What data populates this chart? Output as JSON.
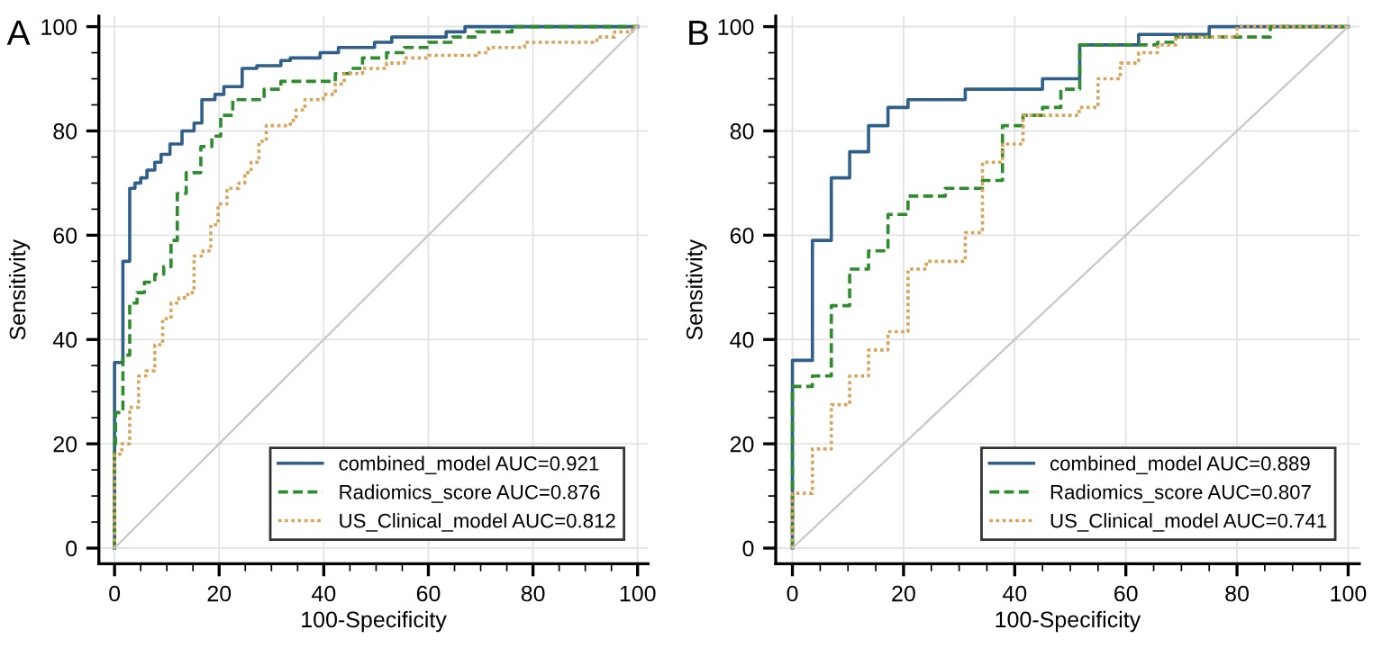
{
  "chart_data": [
    {
      "type": "step",
      "xlabel": "100-Specificity",
      "ylabel": "Sensitivity",
      "annotations": [
        "A"
      ],
      "xlim": [
        -3,
        102
      ],
      "ylim": [
        -3,
        102
      ],
      "xticks": [
        0,
        20,
        40,
        60,
        80,
        100
      ],
      "yticks": [
        0,
        20,
        40,
        60,
        80,
        100
      ],
      "grid": true,
      "legend": "bottom right",
      "series": [
        {
          "name": "combined_model AUC=0.921",
          "color": "#2f5f8a",
          "line_style": "solid",
          "x": [
            0,
            0,
            0,
            1.6,
            1.6,
            2.9,
            3.9,
            5,
            6.2,
            7.7,
            8.9,
            10.6,
            12.9,
            15.2,
            16.7,
            19.2,
            20.9,
            24.4,
            27.2,
            31.8,
            33.6,
            39.3,
            42.8,
            49.7,
            53,
            63.4,
            67,
            100
          ],
          "values": [
            0,
            20,
            35.6,
            37,
            55,
            69,
            70,
            71,
            72.5,
            74,
            75.5,
            77.5,
            80,
            81.5,
            86,
            87,
            88.5,
            92,
            92.5,
            93.5,
            94,
            95,
            96,
            97,
            98,
            99,
            100,
            100
          ]
        },
        {
          "name": "Radiomics_score AUC=0.876",
          "color": "#2e8b2e",
          "line_style": "dashed",
          "x": [
            0,
            0,
            0.2,
            1.6,
            2.9,
            4.3,
            5.7,
            7.7,
            9.4,
            10.8,
            12,
            13.7,
            16.5,
            18.6,
            20.3,
            22.6,
            28.6,
            31.8,
            42.2,
            45,
            47.4,
            52,
            55.4,
            60,
            64.6,
            69.2,
            76,
            100
          ],
          "values": [
            0,
            20,
            26,
            37,
            47,
            49,
            51,
            52.5,
            54,
            59,
            68,
            72,
            77,
            79,
            83,
            86,
            88,
            89.5,
            91,
            92,
            94,
            95,
            96,
            97,
            98,
            99,
            100,
            100
          ]
        },
        {
          "name": "US_Clinical_model AUC=0.812",
          "color": "#d9a35a",
          "line_style": "dotted",
          "x": [
            0,
            0,
            1.4,
            2.9,
            4.6,
            6,
            7.7,
            9.2,
            10.8,
            12.3,
            14,
            15.2,
            16.9,
            18.4,
            19.8,
            21.5,
            23.8,
            24.9,
            26.1,
            27.6,
            29,
            33.6,
            34.7,
            36.4,
            39.9,
            42.2,
            43.9,
            47.4,
            52,
            55.4,
            60,
            69.2,
            71.5,
            78.4,
            92.2,
            95.6,
            99,
            100
          ],
          "values": [
            0,
            18,
            20,
            27,
            33,
            34,
            39,
            44,
            47,
            48,
            49,
            56,
            57,
            62,
            66,
            69,
            70,
            72,
            74,
            78,
            81,
            82,
            84,
            86,
            87,
            89,
            91,
            92,
            93,
            94,
            94.5,
            95,
            96,
            97,
            98,
            99,
            100,
            100
          ]
        },
        {
          "type": "line",
          "color": "#c8c8c8",
          "line_style": "solid",
          "x": [
            0,
            100
          ],
          "values": [
            0,
            100
          ]
        }
      ]
    },
    {
      "type": "step",
      "xlabel": "100-Specificity",
      "ylabel": "Sensitivity",
      "annotations": [
        "B"
      ],
      "xlim": [
        -3,
        102
      ],
      "ylim": [
        -3,
        102
      ],
      "xticks": [
        0,
        20,
        40,
        60,
        80,
        100
      ],
      "yticks": [
        0,
        20,
        40,
        60,
        80,
        100
      ],
      "grid": true,
      "legend": "bottom right",
      "series": [
        {
          "name": "combined_model AUC=0.889",
          "color": "#2f5f8a",
          "line_style": "solid",
          "x": [
            0,
            0,
            3.6,
            7,
            10.3,
            13.7,
            17.2,
            20.8,
            31.1,
            45,
            51.7,
            62.3,
            75,
            100
          ],
          "values": [
            0,
            36,
            59,
            71,
            76,
            81,
            84.5,
            86,
            88,
            90,
            96.5,
            98.5,
            100,
            100
          ]
        },
        {
          "name": "Radiomics_score AUC=0.807",
          "color": "#2e8b2e",
          "line_style": "dashed",
          "x": [
            0,
            0,
            3.6,
            7,
            10.3,
            13.7,
            17.2,
            20.8,
            27.5,
            34.2,
            37.8,
            41.5,
            45,
            48.3,
            51.7,
            65.7,
            69,
            86,
            100
          ],
          "values": [
            0,
            31,
            33,
            46.5,
            53.5,
            57,
            64,
            67.5,
            69,
            70.5,
            81,
            83,
            84.5,
            88,
            96.5,
            97,
            98,
            100,
            100
          ]
        },
        {
          "name": "US_Clinical_model AUC=0.741",
          "color": "#d9a35a",
          "line_style": "dotted",
          "x": [
            0,
            0,
            3.6,
            7,
            10.3,
            13.7,
            17.2,
            20.8,
            24.1,
            31.1,
            34.2,
            37.8,
            41.5,
            51.6,
            55,
            59,
            62.3,
            65.7,
            69,
            80,
            100
          ],
          "values": [
            0,
            10.5,
            19,
            27.5,
            33,
            38,
            41.5,
            53.5,
            55,
            60.5,
            74,
            77.5,
            83,
            84.5,
            90,
            93,
            95,
            96.5,
            98,
            100,
            100
          ]
        },
        {
          "type": "line",
          "color": "#c8c8c8",
          "line_style": "solid",
          "x": [
            0,
            100
          ],
          "values": [
            0,
            100
          ]
        }
      ]
    }
  ]
}
